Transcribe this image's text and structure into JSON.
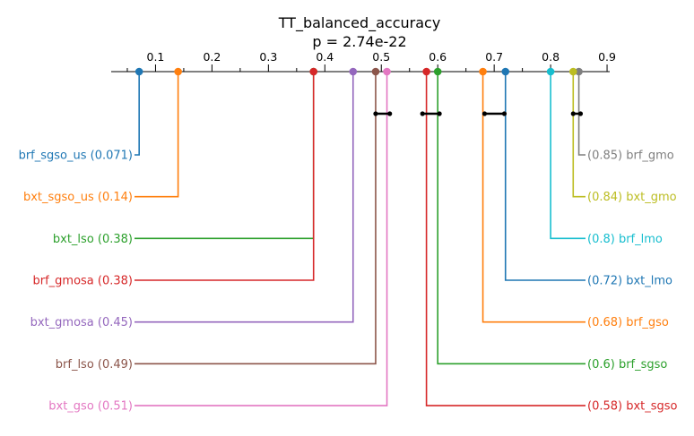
{
  "chart_data": {
    "type": "critical-difference",
    "title": "TT_balanced_accuracy",
    "subtitle": "p = 2.74e-22",
    "axis": {
      "range": [
        0.0,
        0.9
      ],
      "ticks": [
        "0.1",
        "0.2",
        "0.3",
        "0.4",
        "0.5",
        "0.6",
        "0.7",
        "0.8",
        "0.9"
      ],
      "tick_values": [
        0.1,
        0.2,
        0.3,
        0.4,
        0.5,
        0.6,
        0.7,
        0.8,
        0.9
      ]
    },
    "methods": [
      {
        "name": "brf_sgso_us",
        "value": 0.071,
        "label": "brf_sgso_us (0.071)",
        "side": "left",
        "color": "#1f77b4"
      },
      {
        "name": "bxt_sgso_us",
        "value": 0.14,
        "label": "bxt_sgso_us (0.14)",
        "side": "left",
        "color": "#ff7f0e"
      },
      {
        "name": "bxt_lso",
        "value": 0.38,
        "label": "bxt_lso (0.38)",
        "side": "left",
        "color": "#2ca02c"
      },
      {
        "name": "brf_gmosa",
        "value": 0.38,
        "label": "brf_gmosa (0.38)",
        "side": "left",
        "color": "#d62728"
      },
      {
        "name": "bxt_gmosa",
        "value": 0.45,
        "label": "bxt_gmosa (0.45)",
        "side": "left",
        "color": "#9467bd"
      },
      {
        "name": "brf_lso",
        "value": 0.49,
        "label": "brf_lso (0.49)",
        "side": "left",
        "color": "#8c564b"
      },
      {
        "name": "bxt_gso",
        "value": 0.51,
        "label": "bxt_gso (0.51)",
        "side": "left",
        "color": "#e377c2"
      },
      {
        "name": "brf_gmo",
        "value": 0.85,
        "label": "(0.85) brf_gmo",
        "side": "right",
        "color": "#7f7f7f"
      },
      {
        "name": "bxt_gmo",
        "value": 0.84,
        "label": "(0.84) bxt_gmo",
        "side": "right",
        "color": "#bcbd22"
      },
      {
        "name": "brf_lmo",
        "value": 0.8,
        "label": "(0.8) brf_lmo",
        "side": "right",
        "color": "#17becf"
      },
      {
        "name": "bxt_lmo",
        "value": 0.72,
        "label": "(0.72) bxt_lmo",
        "side": "right",
        "color": "#1f77b4"
      },
      {
        "name": "brf_gso",
        "value": 0.68,
        "label": "(0.68) brf_gso",
        "side": "right",
        "color": "#ff7f0e"
      },
      {
        "name": "brf_sgso",
        "value": 0.6,
        "label": "(0.6) brf_sgso",
        "side": "right",
        "color": "#2ca02c"
      },
      {
        "name": "bxt_sgso",
        "value": 0.58,
        "label": "(0.58) bxt_sgso",
        "side": "right",
        "color": "#d62728"
      }
    ],
    "cliques": [
      [
        0.49,
        0.515
      ],
      [
        0.573,
        0.603
      ],
      [
        0.683,
        0.718
      ],
      [
        0.84,
        0.853
      ]
    ]
  }
}
